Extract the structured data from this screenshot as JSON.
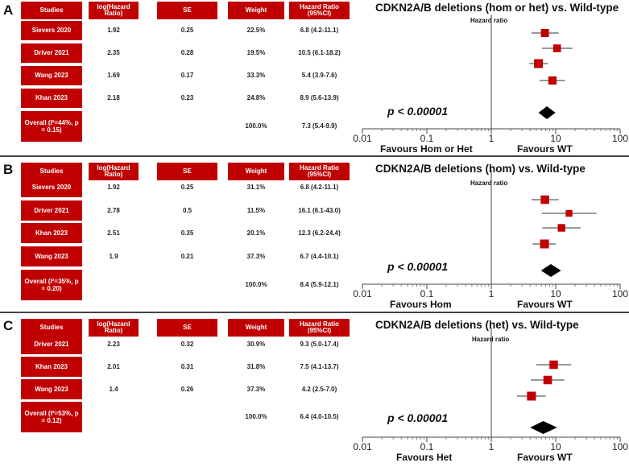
{
  "columns": {
    "studies": "Studies",
    "log_hr": "log(Hazard Ratio)",
    "se": "SE",
    "weight": "Weight",
    "hr_ci": "Hazard Ratio (95%CI)"
  },
  "hr_axis_label": "Hazard ratio",
  "colors": {
    "header": "#c00000",
    "marker": "#c00000",
    "diamond": "#000000"
  },
  "panels": [
    {
      "letter": "A",
      "title": "CDKN2A/B deletions (hom or het) vs. Wild-type",
      "p_value": "p < 0.00001",
      "favours_left": "Favours Hom or Het",
      "favours_right": "Favours WT",
      "rows": [
        {
          "study": "Sievers 2020",
          "log_hr": "1.92",
          "se": "0.25",
          "weight": "22.5%",
          "hr_ci": "6.8 (4.2-11.1)"
        },
        {
          "study": "Driver 2021",
          "log_hr": "2.35",
          "se": "0.28",
          "weight": "19.5%",
          "hr_ci": "10.5 (6.1-18.2)"
        },
        {
          "study": "Wang 2023",
          "log_hr": "1.69",
          "se": "0.17",
          "weight": "33.3%",
          "hr_ci": "5.4 (3.9-7.6)"
        },
        {
          "study": "Khan 2023",
          "log_hr": "2.18",
          "se": "0.23",
          "weight": "24.8%",
          "hr_ci": "8.9 (5.6-13.9)"
        }
      ],
      "overall": {
        "study": "Overall (I²=44%, p = 0.15)",
        "weight": "100.0%",
        "hr_ci": "7.3 (5.4-9.9)"
      }
    },
    {
      "letter": "B",
      "title": "CDKN2A/B deletions (hom) vs. Wild-type",
      "p_value": "p < 0.00001",
      "favours_left": "Favours Hom",
      "favours_right": "Favours WT",
      "rows": [
        {
          "study": "Sievers 2020",
          "log_hr": "1.92",
          "se": "0.25",
          "weight": "31.1%",
          "hr_ci": "6.8 (4.2-11.1)"
        },
        {
          "study": "Driver 2021",
          "log_hr": "2.78",
          "se": "0.5",
          "weight": "11.5%",
          "hr_ci": "16.1 (6.1-43.0)"
        },
        {
          "study": "Khan 2023",
          "log_hr": "2.51",
          "se": "0.35",
          "weight": "20.1%",
          "hr_ci": "12.3 (6.2-24.4)"
        },
        {
          "study": "Wang 2023",
          "log_hr": "1.9",
          "se": "0.21",
          "weight": "37.3%",
          "hr_ci": "6.7 (4.4-10.1)"
        }
      ],
      "overall": {
        "study": "Overall (I²=35%, p = 0.20)",
        "weight": "100.0%",
        "hr_ci": "8.4 (5.9-12.1)"
      }
    },
    {
      "letter": "C",
      "title": "CDKN2A/B deletions (het) vs. Wild-type",
      "p_value": "p < 0.00001",
      "favours_left": "Favours Het",
      "favours_right": "Favours WT",
      "rows": [
        {
          "study": "Driver 2021",
          "log_hr": "2.23",
          "se": "0.32",
          "weight": "30.9%",
          "hr_ci": "9.3 (5.0-17.4)"
        },
        {
          "study": "Khan 2023",
          "log_hr": "2.01",
          "se": "0.31",
          "weight": "31.8%",
          "hr_ci": "7.5 (4.1-13.7)"
        },
        {
          "study": "Wang 2023",
          "log_hr": "1.4",
          "se": "0.26",
          "weight": "37.3%",
          "hr_ci": "4.2 (2.5-7.0)"
        }
      ],
      "overall": {
        "study": "Overall (I²=53%, p = 0.12)",
        "weight": "100.0%",
        "hr_ci": "6.4 (4.0-10.5)"
      }
    }
  ],
  "chart_data": [
    {
      "type": "forest",
      "scale": "log",
      "title": "CDKN2A/B deletions (hom or het) vs. Wild-type",
      "xlabel": "Hazard ratio",
      "xlim": [
        0.01,
        100
      ],
      "xticks": [
        "0.01",
        "0.1",
        "1",
        "10",
        "100"
      ],
      "reference_line": 1,
      "studies": [
        {
          "name": "Sievers 2020",
          "hr": 6.8,
          "lo": 4.2,
          "hi": 11.1,
          "weight": 22.5
        },
        {
          "name": "Driver 2021",
          "hr": 10.5,
          "lo": 6.1,
          "hi": 18.2,
          "weight": 19.5
        },
        {
          "name": "Wang 2023",
          "hr": 5.4,
          "lo": 3.9,
          "hi": 7.6,
          "weight": 33.3
        },
        {
          "name": "Khan 2023",
          "hr": 8.9,
          "lo": 5.6,
          "hi": 13.9,
          "weight": 24.8
        }
      ],
      "pooled": {
        "hr": 7.3,
        "lo": 5.4,
        "hi": 9.9
      }
    },
    {
      "type": "forest",
      "scale": "log",
      "title": "CDKN2A/B deletions (hom) vs. Wild-type",
      "xlabel": "Hazard ratio",
      "xlim": [
        0.01,
        100
      ],
      "xticks": [
        "0.01",
        "0.1",
        "1",
        "10",
        "100"
      ],
      "reference_line": 1,
      "studies": [
        {
          "name": "Sievers 2020",
          "hr": 6.8,
          "lo": 4.2,
          "hi": 11.1,
          "weight": 31.1
        },
        {
          "name": "Driver 2021",
          "hr": 16.1,
          "lo": 6.1,
          "hi": 43.0,
          "weight": 11.5
        },
        {
          "name": "Khan 2023",
          "hr": 12.3,
          "lo": 6.2,
          "hi": 24.4,
          "weight": 20.1
        },
        {
          "name": "Wang 2023",
          "hr": 6.7,
          "lo": 4.4,
          "hi": 10.1,
          "weight": 37.3
        }
      ],
      "pooled": {
        "hr": 8.4,
        "lo": 5.9,
        "hi": 12.1
      }
    },
    {
      "type": "forest",
      "scale": "log",
      "title": "CDKN2A/B deletions (het) vs. Wild-type",
      "xlabel": "Hazard ratio",
      "xlim": [
        0.01,
        100
      ],
      "xticks": [
        "0.01",
        "0.1",
        "1",
        "10",
        "100"
      ],
      "reference_line": 1,
      "studies": [
        {
          "name": "Driver 2021",
          "hr": 9.3,
          "lo": 5.0,
          "hi": 17.4,
          "weight": 30.9
        },
        {
          "name": "Khan 2023",
          "hr": 7.5,
          "lo": 4.1,
          "hi": 13.7,
          "weight": 31.8
        },
        {
          "name": "Wang 2023",
          "hr": 4.2,
          "lo": 2.5,
          "hi": 7.0,
          "weight": 37.3
        }
      ],
      "pooled": {
        "hr": 6.4,
        "lo": 4.0,
        "hi": 10.5
      }
    }
  ]
}
